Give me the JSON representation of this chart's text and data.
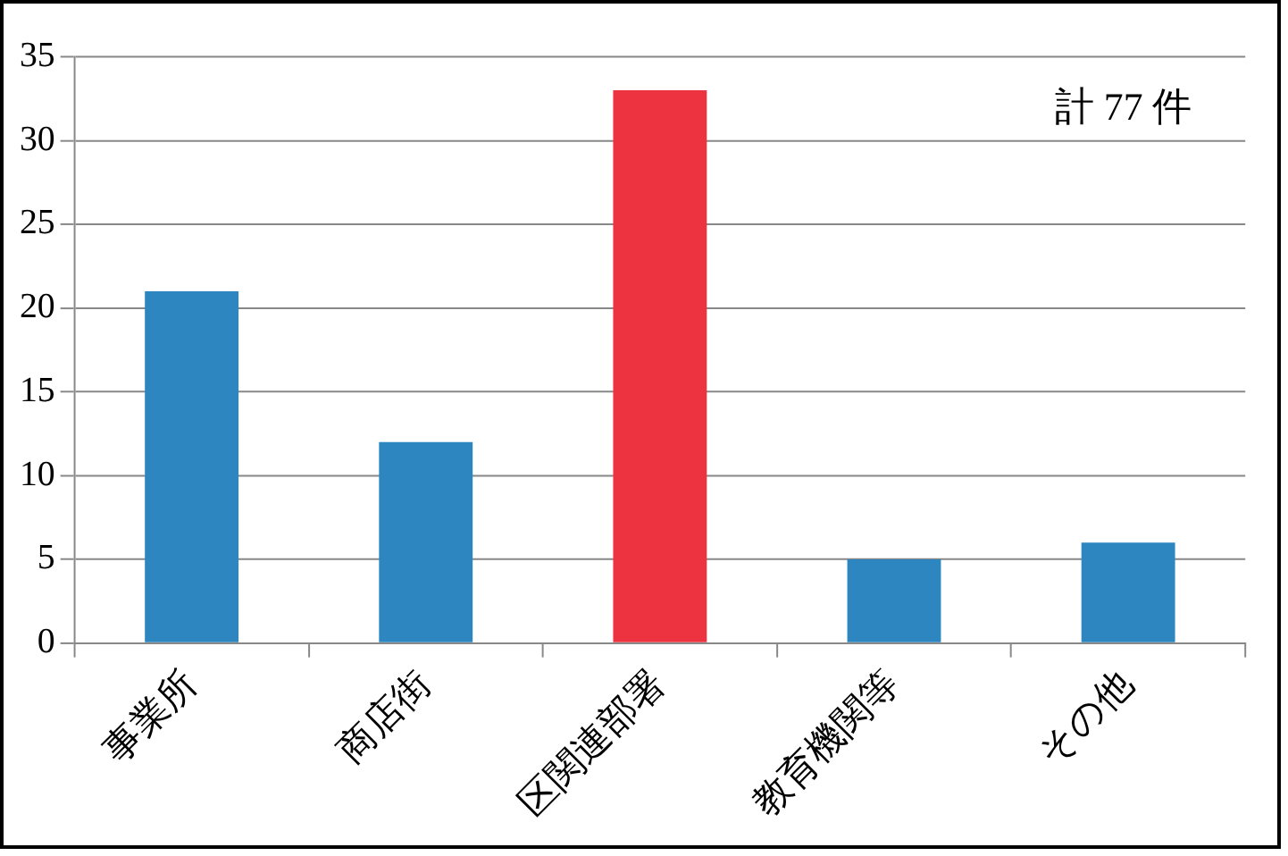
{
  "chart_data": {
    "type": "bar",
    "categories": [
      "事業所",
      "商店街",
      "区関連部署",
      "教育機関等",
      "その他"
    ],
    "values": [
      21,
      12,
      33,
      5,
      6
    ],
    "colors": [
      "#2e86c1",
      "#2e86c1",
      "#ee3340",
      "#2e86c1",
      "#2e86c1"
    ],
    "ylim": [
      0,
      35
    ],
    "yticks": [
      0,
      5,
      10,
      15,
      20,
      25,
      30,
      35
    ],
    "grid": "y",
    "legend": false,
    "annotations": [
      "計 77 件"
    ]
  }
}
